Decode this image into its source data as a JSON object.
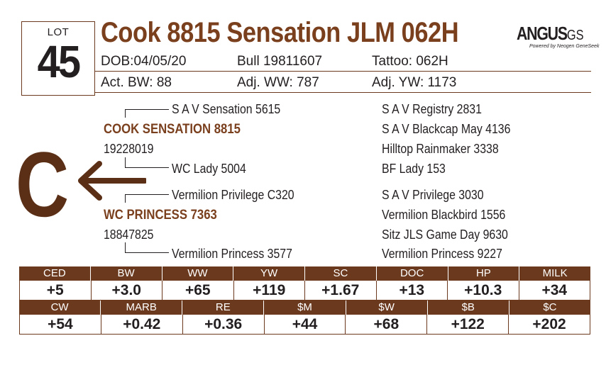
{
  "lot": {
    "label": "LOT",
    "number": "45"
  },
  "title": "Cook 8815 Sensation JLM 062H",
  "logo": {
    "main": "ANGUS",
    "suffix": "GS",
    "sub": "Powered by Neogen GeneSeek"
  },
  "info": {
    "dob": "DOB:04/05/20",
    "reg": "Bull  19811607",
    "tattoo": "Tattoo: 062H",
    "act_bw": "Act. BW: 88",
    "adj_ww": "Adj. WW: 787",
    "adj_yw": "Adj. YW: 1173"
  },
  "pedigree": {
    "sire": "COOK SENSATION 8815",
    "sire_reg": "19228019",
    "sire_sire": "S A V Sensation 5615",
    "sire_dam": "WC Lady 5004",
    "dam": "WC PRINCESS 7363",
    "dam_reg": "18847825",
    "dam_sire": "Vermilion Privilege C320",
    "dam_dam": "Vermilion Princess 3577",
    "right": [
      "S A V Registry 2831",
      "S A V Blackcap May 4136",
      "Hilltop Rainmaker 3338",
      "BF Lady 153",
      "S A V Privilege 3030",
      "Vermilion Blackbird 1556",
      "Sitz JLS Game Day 9630",
      "Vermilion Princess 9227"
    ]
  },
  "marker": "C",
  "epd_row1": {
    "headers": [
      "CED",
      "BW",
      "WW",
      "YW",
      "SC",
      "DOC",
      "HP",
      "MILK"
    ],
    "values": [
      "+5",
      "+3.0",
      "+65",
      "+119",
      "+1.67",
      "+13",
      "+10.3",
      "+34"
    ]
  },
  "epd_row2": {
    "headers": [
      "CW",
      "MARB",
      "RE",
      "$M",
      "$W",
      "$B",
      "$C"
    ],
    "values": [
      "+54",
      "+0.42",
      "+0.36",
      "+44",
      "+68",
      "+122",
      "+202"
    ]
  },
  "colors": {
    "accent": "#6b3a1e",
    "title": "#7a3f1d",
    "text": "#231f20"
  }
}
